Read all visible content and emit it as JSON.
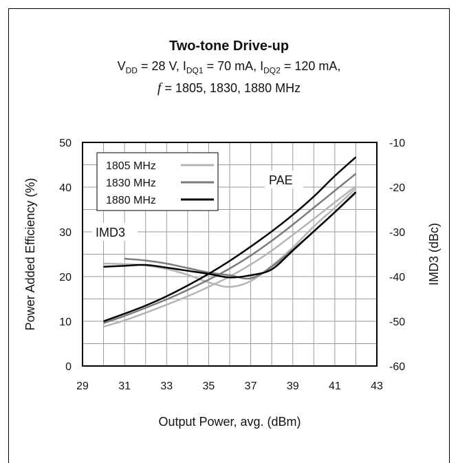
{
  "chart_data": {
    "type": "line",
    "title": "Two-tone Drive-up",
    "subtitle_parts": {
      "vdd_main": "V",
      "vdd_sub": "DD",
      "vdd_rest": " = 28 V, I",
      "idq1_sub": "DQ1",
      "idq1_rest": " = 70 mA, I",
      "idq2_sub": "DQ2",
      "idq2_rest": " = 120 mA,",
      "f_symbol": "f",
      "f_rest": " = 1805, 1830, 1880 MHz"
    },
    "xlabel": "Output Power, avg. (dBm)",
    "ylabel": "Power Added Efficiency (%)",
    "ylabel_right": "IMD3 (dBc)",
    "xlim": [
      29,
      43
    ],
    "ylim": [
      0,
      50
    ],
    "ylim_right": [
      -60,
      -10
    ],
    "x_ticks": [
      "29",
      "31",
      "33",
      "35",
      "37",
      "39",
      "41",
      "43"
    ],
    "y_ticks": [
      "0",
      "10",
      "20",
      "30",
      "40",
      "50"
    ],
    "y_ticks_right": [
      "-60",
      "-50",
      "-40",
      "-30",
      "-20",
      "-10"
    ],
    "grid": true,
    "annotations": {
      "pae": "PAE",
      "imd3": "IMD3"
    },
    "legend_position": "top-left",
    "series": [
      {
        "name": "1805 MHz",
        "color": "#b4b4b4",
        "pae": [
          [
            30,
            8.8
          ],
          [
            31,
            10.2
          ],
          [
            32,
            11.9
          ],
          [
            33,
            13.7
          ],
          [
            34,
            15.6
          ],
          [
            35,
            17.7
          ],
          [
            36,
            20.0
          ],
          [
            37,
            22.7
          ],
          [
            38,
            25.8
          ],
          [
            39,
            29.3
          ],
          [
            40,
            32.9
          ],
          [
            41,
            36.6
          ],
          [
            42,
            40.2
          ]
        ],
        "imd3": [
          [
            30,
            -37.1
          ],
          [
            31,
            -37.2
          ],
          [
            32,
            -37.5
          ],
          [
            33,
            -38.3
          ],
          [
            34,
            -39.6
          ],
          [
            35,
            -41.3
          ],
          [
            36,
            -42.3
          ],
          [
            37,
            -41.0
          ],
          [
            38,
            -37.6
          ],
          [
            39,
            -33.5
          ],
          [
            40,
            -28.8
          ],
          [
            41,
            -24.6
          ],
          [
            42,
            -20.3
          ]
        ]
      },
      {
        "name": "1830 MHz",
        "color": "#7a7a7a",
        "pae": [
          [
            30,
            9.6
          ],
          [
            31,
            11.2
          ],
          [
            32,
            13.0
          ],
          [
            33,
            14.9
          ],
          [
            34,
            17.0
          ],
          [
            35,
            19.3
          ],
          [
            36,
            21.8
          ],
          [
            37,
            24.7
          ],
          [
            38,
            28.0
          ],
          [
            39,
            31.6
          ],
          [
            40,
            35.4
          ],
          [
            41,
            39.2
          ],
          [
            42,
            43.0
          ]
        ],
        "imd3": [
          [
            31,
            -36.0
          ],
          [
            32,
            -36.4
          ],
          [
            33,
            -37.1
          ],
          [
            34,
            -38.1
          ],
          [
            35,
            -39.1
          ],
          [
            36,
            -39.7
          ],
          [
            37,
            -40.4
          ],
          [
            38,
            -37.8
          ],
          [
            39,
            -34.0
          ],
          [
            40,
            -29.9
          ],
          [
            41,
            -25.6
          ],
          [
            42,
            -21.3
          ]
        ]
      },
      {
        "name": "1880 MHz",
        "color": "#000000",
        "pae": [
          [
            30,
            10.0
          ],
          [
            31,
            11.7
          ],
          [
            32,
            13.5
          ],
          [
            33,
            15.6
          ],
          [
            34,
            18.0
          ],
          [
            35,
            20.6
          ],
          [
            36,
            23.5
          ],
          [
            37,
            26.7
          ],
          [
            38,
            30.1
          ],
          [
            39,
            33.8
          ],
          [
            40,
            37.9
          ],
          [
            41,
            42.5
          ],
          [
            42,
            46.7
          ]
        ],
        "imd3": [
          [
            30,
            -37.8
          ],
          [
            31,
            -37.6
          ],
          [
            32,
            -37.4
          ],
          [
            33,
            -38.0
          ],
          [
            34,
            -38.7
          ],
          [
            35,
            -39.4
          ],
          [
            36,
            -40.2
          ],
          [
            37,
            -39.7
          ],
          [
            38,
            -38.4
          ],
          [
            39,
            -34.2
          ],
          [
            40,
            -29.9
          ],
          [
            41,
            -25.6
          ],
          [
            42,
            -21.1
          ]
        ]
      }
    ]
  }
}
